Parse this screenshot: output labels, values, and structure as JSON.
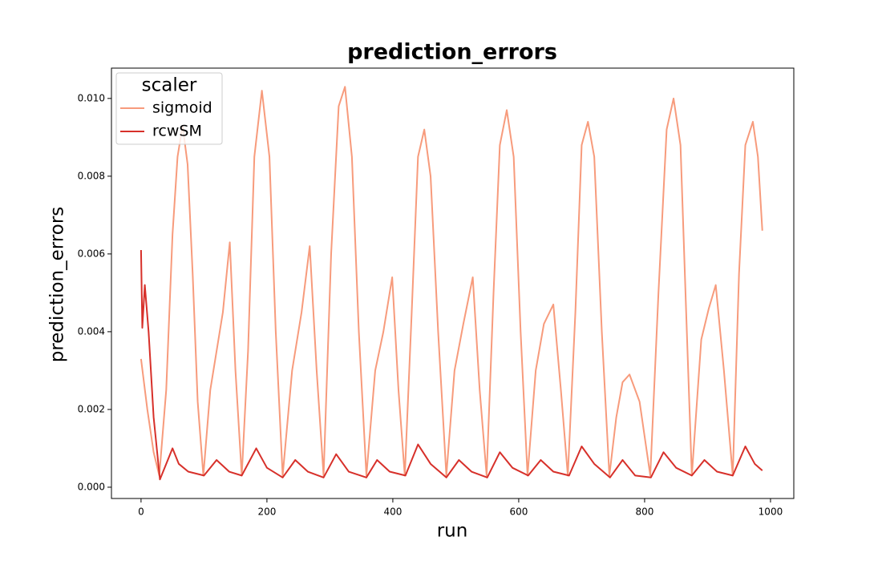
{
  "chart_data": {
    "type": "line",
    "title": "prediction_errors",
    "xlabel": "run",
    "ylabel": "prediction_errors",
    "legend_title": "scaler",
    "legend": "upper left",
    "xlim": [
      -47,
      1037
    ],
    "ylim": [
      -0.00029,
      0.01078
    ],
    "xticks": [
      0,
      200,
      400,
      600,
      800,
      1000
    ],
    "yticks": [
      {
        "value": 0,
        "label": "0.000"
      },
      {
        "value": 0.002,
        "label": "0.002"
      },
      {
        "value": 0.004,
        "label": "0.004"
      },
      {
        "value": 0.006,
        "label": "0.006"
      },
      {
        "value": 0.008,
        "label": "0.008"
      },
      {
        "value": 0.01,
        "label": "0.010"
      }
    ],
    "series": [
      {
        "name": "sigmoid",
        "color": "#f79b7c",
        "x": [
          0,
          10,
          20,
          29,
          40,
          50,
          58,
          66,
          74,
          82,
          90,
          99,
          110,
          120,
          130,
          141,
          150,
          160,
          170,
          180,
          192,
          204,
          214,
          225,
          240,
          255,
          268,
          279,
          290,
          302,
          314,
          324,
          335,
          346,
          358,
          372,
          385,
          399,
          409,
          419,
          430,
          440,
          450,
          460,
          472,
          485,
          498,
          512,
          527,
          538,
          549,
          560,
          570,
          581,
          592,
          603,
          614,
          627,
          640,
          655,
          667,
          678,
          690,
          700,
          710,
          720,
          732,
          744,
          755,
          765,
          776,
          792,
          809,
          822,
          835,
          846,
          857,
          866,
          875,
          890,
          902,
          913,
          926,
          940,
          950,
          960,
          972,
          980,
          987
        ],
        "values": [
          0.0033,
          0.002,
          0.0009,
          0.0003,
          0.0025,
          0.0065,
          0.0085,
          0.0093,
          0.0083,
          0.0055,
          0.0022,
          0.0003,
          0.0025,
          0.0035,
          0.0045,
          0.0063,
          0.003,
          0.0003,
          0.0035,
          0.0085,
          0.0102,
          0.0085,
          0.004,
          0.0003,
          0.003,
          0.0045,
          0.0062,
          0.003,
          0.0003,
          0.006,
          0.0098,
          0.0103,
          0.0085,
          0.004,
          0.0003,
          0.003,
          0.004,
          0.0054,
          0.0025,
          0.0003,
          0.0045,
          0.0085,
          0.0092,
          0.008,
          0.004,
          0.0003,
          0.003,
          0.0042,
          0.0054,
          0.0025,
          0.0003,
          0.005,
          0.0088,
          0.0097,
          0.0085,
          0.004,
          0.0003,
          0.003,
          0.0042,
          0.0047,
          0.0025,
          0.0003,
          0.0045,
          0.0088,
          0.0094,
          0.0085,
          0.004,
          0.0003,
          0.0018,
          0.0027,
          0.0029,
          0.0022,
          0.0003,
          0.005,
          0.0092,
          0.01,
          0.0088,
          0.0045,
          0.0003,
          0.0038,
          0.0046,
          0.0052,
          0.003,
          0.0003,
          0.0055,
          0.0088,
          0.0094,
          0.0085,
          0.0066
        ]
      },
      {
        "name": "rcwSM",
        "color": "#d7302a",
        "x": [
          0,
          2,
          6,
          12,
          20,
          30,
          40,
          50,
          60,
          75,
          100,
          120,
          140,
          160,
          183,
          200,
          225,
          245,
          265,
          290,
          310,
          330,
          358,
          375,
          395,
          420,
          440,
          460,
          485,
          505,
          525,
          550,
          570,
          590,
          615,
          635,
          655,
          680,
          700,
          720,
          745,
          765,
          785,
          810,
          830,
          850,
          875,
          895,
          915,
          940,
          960,
          975,
          987
        ],
        "values": [
          0.0061,
          0.0041,
          0.0052,
          0.004,
          0.0018,
          0.0002,
          0.0006,
          0.001,
          0.0006,
          0.0004,
          0.0003,
          0.0007,
          0.0004,
          0.0003,
          0.001,
          0.0005,
          0.00025,
          0.0007,
          0.0004,
          0.00025,
          0.00085,
          0.0004,
          0.00025,
          0.0007,
          0.0004,
          0.0003,
          0.0011,
          0.0006,
          0.00025,
          0.0007,
          0.0004,
          0.00025,
          0.0009,
          0.0005,
          0.0003,
          0.0007,
          0.0004,
          0.0003,
          0.00105,
          0.0006,
          0.00025,
          0.0007,
          0.0003,
          0.00025,
          0.0009,
          0.0005,
          0.0003,
          0.0007,
          0.0004,
          0.0003,
          0.00105,
          0.0006,
          0.00043
        ]
      }
    ]
  }
}
